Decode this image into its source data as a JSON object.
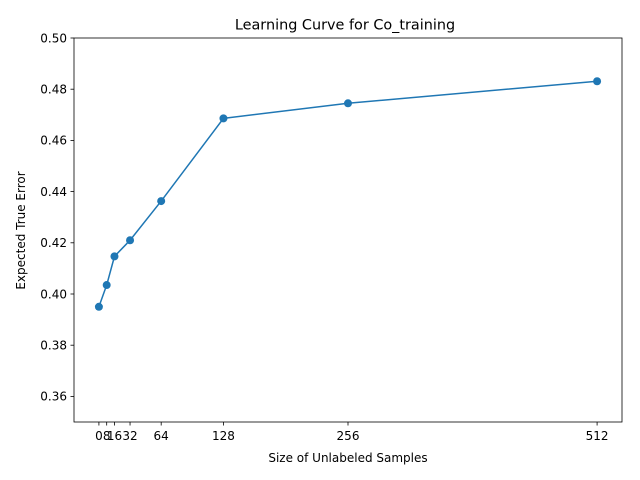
{
  "chart_data": {
    "type": "line",
    "title": "Learning Curve for Co_training",
    "xlabel": "Size of Unlabeled Samples",
    "ylabel": "Expected True Error",
    "x": [
      0,
      8,
      16,
      32,
      64,
      128,
      256,
      512
    ],
    "x_tick_labels": [
      "0",
      "8",
      "16",
      "32",
      "64",
      "128",
      "256",
      "512"
    ],
    "ylim": [
      0.35,
      0.5
    ],
    "y_ticks": [
      0.36,
      0.38,
      0.4,
      0.42,
      0.44,
      0.46,
      0.48,
      0.5
    ],
    "y_tick_labels": [
      "0.36",
      "0.38",
      "0.40",
      "0.42",
      "0.44",
      "0.46",
      "0.48",
      "0.50"
    ],
    "grid": false,
    "series": [
      {
        "color": "#1f77b4",
        "marker": "circle",
        "values": [
          0.395,
          0.4035,
          0.4147,
          0.421,
          0.4363,
          0.4686,
          0.4745,
          0.4831
        ]
      }
    ]
  }
}
